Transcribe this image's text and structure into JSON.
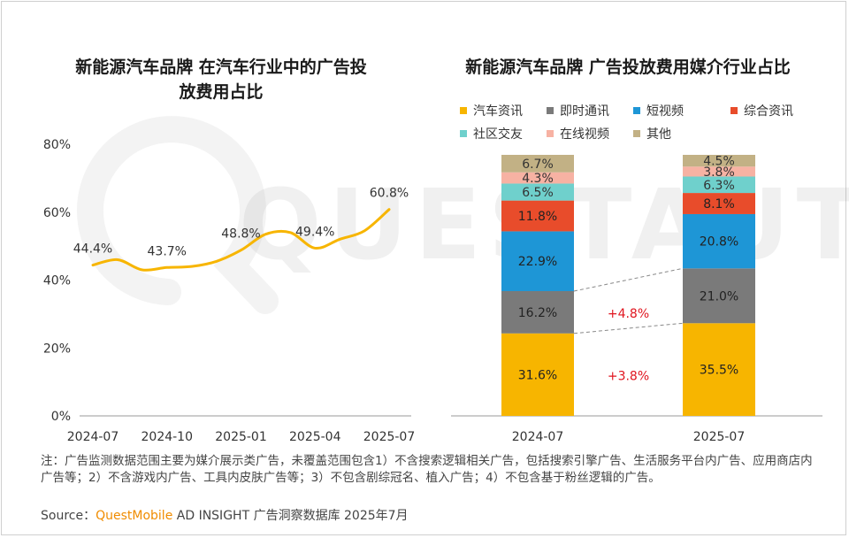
{
  "left_chart": {
    "title_line1": "新能源汽车品牌 在汽车行业中的广告投",
    "title_line2": "放费用占比"
  },
  "right_chart": {
    "title": "新能源汽车品牌 广告投放费用媒介行业占比"
  },
  "legend": [
    {
      "label": "汽车资讯",
      "color": "#f7b500"
    },
    {
      "label": "即时通讯",
      "color": "#7a7a7a"
    },
    {
      "label": "短视频",
      "color": "#1e96d6"
    },
    {
      "label": "综合资讯",
      "color": "#e84c2b"
    },
    {
      "label": "社区交友",
      "color": "#6fd0cc"
    },
    {
      "label": "在线视频",
      "color": "#f7b2a3"
    },
    {
      "label": "其他",
      "color": "#c2b185"
    }
  ],
  "watermark": "QUESTAUTO",
  "note": "注：广告监测数据范围主要为媒介展示类广告，未覆盖范围包含1）不含搜索逻辑相关广告，包括搜索引擎广告、生活服务平台内广告、应用商店内广告等；2）不含游戏内广告、工具内皮肤广告等；3）不包含剧综冠名、植入广告；4）不包含基于粉丝逻辑的广告。",
  "source": {
    "prefix": "Source：",
    "brand": "QuestMobile",
    "rest": " AD INSIGHT 广告洞察数据库 2025年7月"
  },
  "chart_data": [
    {
      "type": "line",
      "title": "新能源汽车品牌 在汽车行业中的广告投放费用占比",
      "x": [
        "2024-07",
        "2024-08",
        "2024-09",
        "2024-10",
        "2024-11",
        "2024-12",
        "2025-01",
        "2025-02",
        "2025-03",
        "2025-04",
        "2025-05",
        "2025-06",
        "2025-07"
      ],
      "xticks": [
        "2024-07",
        "2024-10",
        "2025-01",
        "2025-04",
        "2025-07"
      ],
      "values": [
        44.4,
        46.0,
        43.0,
        43.7,
        44.0,
        45.5,
        48.8,
        53.5,
        54.0,
        49.4,
        52.0,
        54.5,
        60.8
      ],
      "data_labels": [
        {
          "index": 0,
          "text": "44.4%"
        },
        {
          "index": 3,
          "text": "43.7%"
        },
        {
          "index": 6,
          "text": "48.8%"
        },
        {
          "index": 9,
          "text": "49.4%"
        },
        {
          "index": 12,
          "text": "60.8%"
        }
      ],
      "yticks": [
        "0%",
        "20%",
        "40%",
        "60%",
        "80%"
      ],
      "ylim": [
        0,
        80
      ],
      "color": "#f7b500"
    },
    {
      "type": "bar",
      "stacked": true,
      "title": "新能源汽车品牌 广告投放费用媒介行业占比",
      "categories": [
        "2024-07",
        "2025-07"
      ],
      "series": [
        {
          "name": "汽车资讯",
          "values": [
            31.6,
            35.5
          ]
        },
        {
          "name": "即时通讯",
          "values": [
            16.2,
            21.0
          ]
        },
        {
          "name": "短视频",
          "values": [
            22.9,
            20.8
          ]
        },
        {
          "name": "综合资讯",
          "values": [
            11.8,
            8.1
          ]
        },
        {
          "name": "社区交友",
          "values": [
            6.5,
            6.3
          ]
        },
        {
          "name": "在线视频",
          "values": [
            4.3,
            3.8
          ]
        },
        {
          "name": "其他",
          "values": [
            6.7,
            4.5
          ]
        }
      ],
      "annotations": [
        {
          "series": "即时通讯",
          "text": "+4.8%"
        },
        {
          "series": "汽车资讯",
          "text": "+3.8%"
        }
      ],
      "annotation_color": "#e0141e"
    }
  ]
}
